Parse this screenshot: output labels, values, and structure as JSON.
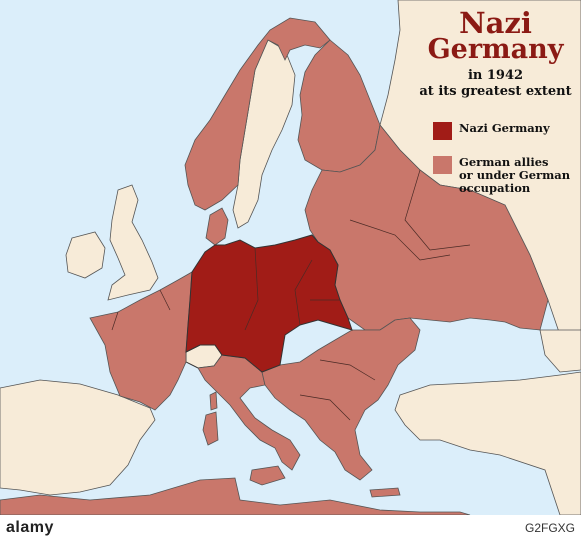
{
  "title": {
    "line1": "Nazi",
    "line2": "Germany"
  },
  "subtitle": {
    "line1": "in 1942",
    "line2": "at its greatest extent"
  },
  "legend": [
    {
      "label": "Nazi Germany",
      "color": "#a11c17"
    },
    {
      "label": "German allies\nor under German\noccupation",
      "color": "#c9776b"
    }
  ],
  "colors": {
    "sea": "#dbeefa",
    "neutral_land": "#f7ebd8",
    "nazi_germany": "#a11c17",
    "allies_occupied": "#c9776b",
    "border": "#3a3a3a",
    "title": "#8b1a14"
  },
  "watermark": {
    "brand": "alamy",
    "image_id": "G2FGXG"
  }
}
